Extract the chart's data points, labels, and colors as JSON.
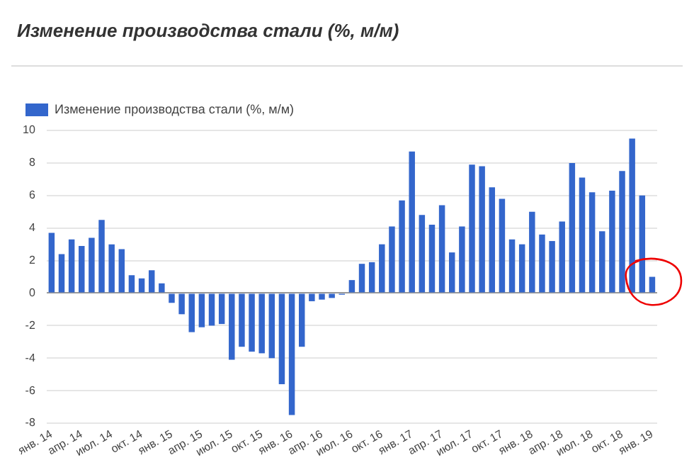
{
  "chart_data": {
    "type": "bar",
    "title": "Изменение производства стали (%, м/м)",
    "categories": [
      "янв. 14",
      null,
      null,
      "апр. 14",
      null,
      null,
      "июл. 14",
      null,
      null,
      "окт. 14",
      null,
      null,
      "янв. 15",
      null,
      null,
      "апр. 15",
      null,
      null,
      "июл. 15",
      null,
      null,
      "окт. 15",
      null,
      null,
      "янв. 16",
      null,
      null,
      "апр. 16",
      null,
      null,
      "июл. 16",
      null,
      null,
      "окт. 16",
      null,
      null,
      "янв. 17",
      null,
      null,
      "апр. 17",
      null,
      null,
      "июл. 17",
      null,
      null,
      "окт. 17",
      null,
      null,
      "янв. 18",
      null,
      null,
      "апр. 18",
      null,
      null,
      "июл. 18",
      null,
      null,
      "окт. 18",
      null,
      null,
      "янв. 19"
    ],
    "series": [
      {
        "name": "Изменение производства стали (%, м/м)",
        "color": "#3366cc",
        "values": [
          3.7,
          2.4,
          3.3,
          2.9,
          3.4,
          4.5,
          3.0,
          2.7,
          1.1,
          0.9,
          1.4,
          0.6,
          -0.6,
          -1.3,
          -2.4,
          -2.1,
          -2.0,
          -1.9,
          -4.1,
          -3.3,
          -3.6,
          -3.7,
          -4.0,
          -5.6,
          -7.5,
          -3.3,
          -0.5,
          -0.4,
          -0.3,
          -0.1,
          0.8,
          1.8,
          1.9,
          3.0,
          4.1,
          5.7,
          8.7,
          4.8,
          4.2,
          5.4,
          2.5,
          4.1,
          7.9,
          7.8,
          6.5,
          5.8,
          3.3,
          3.0,
          5.0,
          3.6,
          3.2,
          4.4,
          8.0,
          7.1,
          6.2,
          3.8,
          6.3,
          7.5,
          9.5,
          6.0,
          1.0
        ]
      }
    ],
    "ylim": [
      -8,
      10
    ],
    "yticks": [
      -8,
      -6,
      -4,
      -2,
      0,
      2,
      4,
      6,
      8,
      10
    ],
    "grid": "y",
    "legend": "top left"
  }
}
